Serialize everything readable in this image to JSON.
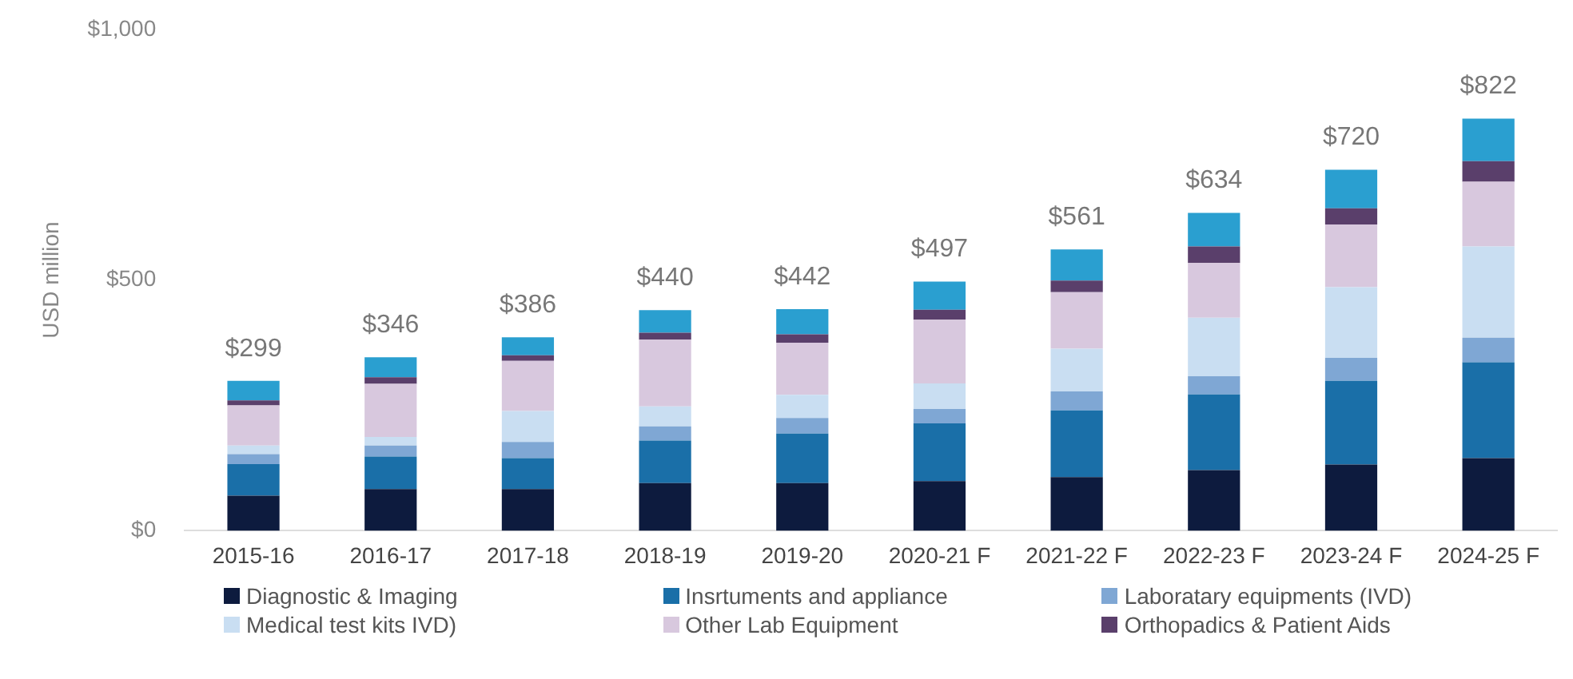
{
  "chart_data": {
    "type": "bar",
    "stacked": true,
    "ylabel": "USD million",
    "categories": [
      "2015-16",
      "2016-17",
      "2017-18",
      "2018-19",
      "2019-20",
      "2020-21 F",
      "2021-22 F",
      "2022-23 F",
      "2023-24 F",
      "2024-25 F"
    ],
    "series": [
      {
        "name": "Diagnostic & Imaging",
        "color": "#0d1b3e",
        "values": [
          70,
          83,
          83,
          95,
          95,
          99,
          107,
          121,
          132,
          145
        ]
      },
      {
        "name": "Insrtuments and appliance",
        "color": "#1a6fa8",
        "values": [
          63,
          65,
          62,
          85,
          99,
          115,
          133,
          151,
          167,
          191
        ]
      },
      {
        "name": "Laboratary equipments (IVD)",
        "color": "#7fa7d4",
        "values": [
          20,
          22,
          32,
          28,
          31,
          29,
          38,
          36,
          46,
          49
        ]
      },
      {
        "name": "Medical test kits IVD)",
        "color": "#c9def2",
        "values": [
          17,
          17,
          62,
          40,
          46,
          51,
          85,
          117,
          141,
          182
        ]
      },
      {
        "name": "Other Lab Equipment",
        "color": "#d8c8de",
        "values": [
          80,
          106,
          100,
          133,
          104,
          127,
          113,
          109,
          125,
          129
        ]
      },
      {
        "name": "Orthopadics & Patient Aids",
        "color": "#5a3f6b",
        "values": [
          10,
          13,
          11,
          14,
          17,
          20,
          23,
          33,
          32,
          41
        ]
      },
      {
        "color": "#2a9fd0",
        "values": [
          39,
          40,
          36,
          45,
          50,
          56,
          62,
          67,
          77,
          85
        ]
      }
    ],
    "totals": [
      "$299",
      "$346",
      "$386",
      "$440",
      "$442",
      "$497",
      "$561",
      "$634",
      "$720",
      "$822"
    ],
    "ylim": [
      0,
      1000
    ],
    "yticks": [
      {
        "value": 0,
        "label": "$0"
      },
      {
        "value": 500,
        "label": "$500"
      },
      {
        "value": 1000,
        "label": "$1,000"
      }
    ],
    "grid": false,
    "legend": "bottom"
  }
}
